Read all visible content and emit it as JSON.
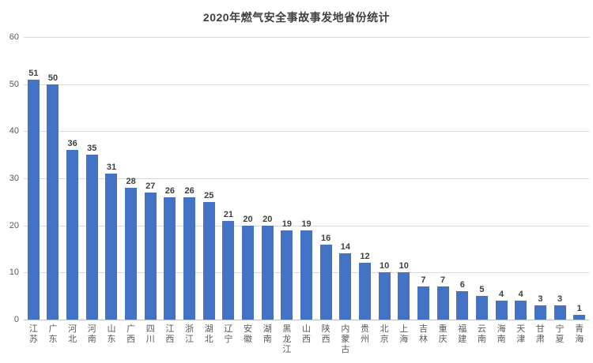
{
  "chart_data": {
    "type": "bar",
    "title": "2020年燃气安全事故事发地省份统计",
    "categories": [
      "江苏",
      "广东",
      "河北",
      "河南",
      "山东",
      "广西",
      "四川",
      "江西",
      "浙江",
      "湖北",
      "辽宁",
      "安徽",
      "湖南",
      "黑龙江",
      "山西",
      "陕西",
      "内蒙古",
      "贵州",
      "北京",
      "上海",
      "吉林",
      "重庆",
      "福建",
      "云南",
      "海南",
      "天津",
      "甘肃",
      "宁夏",
      "青海"
    ],
    "values": [
      51,
      50,
      36,
      35,
      31,
      28,
      27,
      26,
      26,
      25,
      21,
      20,
      20,
      19,
      19,
      16,
      14,
      12,
      10,
      10,
      7,
      7,
      6,
      5,
      4,
      4,
      3,
      3,
      1
    ],
    "xlabel": "",
    "ylabel": "",
    "ylim": [
      0,
      60
    ],
    "yticks": [
      0,
      10,
      20,
      30,
      40,
      50,
      60
    ],
    "grid": "horizontal",
    "legend_position": "none",
    "data_labels": true,
    "colors": {
      "bar": "#4472c4",
      "gridline": "#d9d9d9",
      "axis_line": "#c0c0c0",
      "title_text": "#404040",
      "value_label_text": "#404040",
      "tick_label_text": "#595959"
    }
  }
}
